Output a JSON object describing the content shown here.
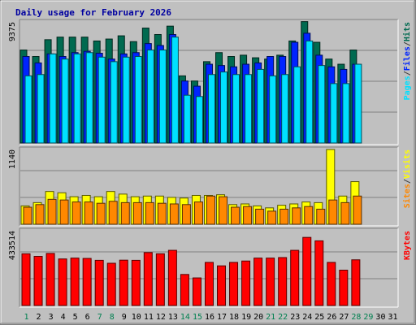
{
  "chart_data": {
    "type": "bar",
    "title": "Daily usage for February 2026",
    "x": [
      "1",
      "2",
      "3",
      "4",
      "5",
      "6",
      "7",
      "8",
      "9",
      "10",
      "11",
      "12",
      "13",
      "14",
      "15",
      "16",
      "17",
      "18",
      "19",
      "20",
      "21",
      "22",
      "23",
      "24",
      "25",
      "26",
      "27",
      "28",
      "29",
      "30",
      "31"
    ],
    "weekend_days": [
      "1",
      "7",
      "8",
      "14",
      "15",
      "21",
      "22",
      "28",
      "29"
    ],
    "panels": [
      {
        "name": "hits-files-pages",
        "ymax": 9375,
        "ymax_label": "9375",
        "legend": [
          "Pages",
          "/",
          "Files",
          "/",
          "Hits"
        ],
        "series": [
          {
            "name": "Hits",
            "color": "#006a50",
            "values": [
              7200,
              6700,
              8000,
              8200,
              8200,
              8200,
              7900,
              8050,
              8300,
              7850,
              8900,
              8400,
              9050,
              5200,
              4800,
              6300,
              7000,
              6700,
              6800,
              6600,
              6500,
              6800,
              7900,
              9400,
              7800,
              6500,
              6100,
              7200,
              0,
              0,
              0
            ]
          },
          {
            "name": "Files",
            "color": "#0024ff",
            "values": [
              6700,
              6200,
              6900,
              6700,
              7000,
              7100,
              6950,
              6500,
              6900,
              7000,
              7700,
              7550,
              8400,
              4800,
              4400,
              6100,
              6000,
              5900,
              6100,
              6200,
              6700,
              6700,
              7800,
              8500,
              6800,
              5900,
              5700,
              6100,
              0,
              0,
              0
            ]
          },
          {
            "name": "Pages",
            "color": "#00e0ff",
            "values": [
              5200,
              5300,
              6900,
              6500,
              6900,
              7000,
              6650,
              6300,
              6650,
              6700,
              7200,
              7200,
              8200,
              3700,
              3600,
              5300,
              5500,
              5300,
              5300,
              5700,
              5200,
              5300,
              5900,
              7900,
              6000,
              4600,
              4600,
              6100,
              0,
              0,
              0
            ]
          }
        ]
      },
      {
        "name": "visits-sites",
        "ymax": 1140,
        "ymax_label": "1140",
        "legend": [
          "Sites",
          "/",
          "Visits"
        ],
        "series": [
          {
            "name": "Visits",
            "color": "#ffff00",
            "values": [
              280,
              330,
              500,
              480,
              420,
              440,
              420,
              500,
              460,
              420,
              430,
              430,
              410,
              400,
              440,
              440,
              450,
              300,
              310,
              280,
              250,
              290,
              310,
              340,
              330,
              1140,
              430,
              650,
              0,
              0,
              0
            ]
          },
          {
            "name": "Sites",
            "color": "#ff8800",
            "values": [
              260,
              300,
              380,
              370,
              340,
              340,
              320,
              350,
              330,
              330,
              330,
              320,
              310,
              300,
              340,
              430,
              420,
              260,
              270,
              230,
              200,
              230,
              250,
              270,
              230,
              370,
              330,
              430,
              0,
              0,
              0
            ]
          }
        ]
      },
      {
        "name": "kbytes",
        "ymax": 433514,
        "ymax_label": "433514",
        "legend": [
          "KBytes"
        ],
        "series": [
          {
            "name": "KBytes",
            "color": "#ff0000",
            "values": [
              300000,
              285000,
              302000,
              270000,
              275000,
              273000,
              262000,
              245000,
              263000,
              262000,
              307000,
              300000,
              320000,
              180000,
              160000,
              250000,
              230000,
              250000,
              258000,
              275000,
              275000,
              278000,
              320000,
              395000,
              375000,
              250000,
              205000,
              265000,
              0,
              0,
              0
            ]
          }
        ]
      }
    ]
  }
}
